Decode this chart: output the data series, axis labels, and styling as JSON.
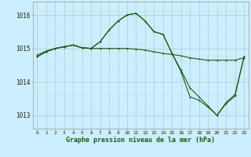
{
  "title": "Graphe pression niveau de la mer (hPa)",
  "ylim": [
    1012.6,
    1016.4
  ],
  "yticks": [
    1013,
    1014,
    1015,
    1016
  ],
  "ytick_labels": [
    "1013",
    "1014",
    "1015",
    "1016"
  ],
  "xticks": [
    0,
    1,
    2,
    3,
    4,
    5,
    6,
    7,
    8,
    9,
    10,
    11,
    12,
    13,
    14,
    15,
    16,
    17,
    18,
    19,
    20,
    21,
    22,
    23
  ],
  "background_color": "#cceeff",
  "grid_color_major": "#aacccc",
  "grid_color_minor": "#bbdddd",
  "line_color": "#1a5c1a",
  "line1_y": [
    1014.8,
    1014.92,
    1015.0,
    1015.05,
    1015.1,
    1015.02,
    1015.0,
    1015.0,
    1015.0,
    1015.0,
    1015.0,
    1014.98,
    1014.95,
    1014.9,
    1014.85,
    1014.82,
    1014.78,
    1014.72,
    1014.68,
    1014.65,
    1014.65,
    1014.65,
    1014.65,
    1014.72
  ],
  "line2_y": [
    1014.75,
    1014.9,
    1015.0,
    1015.05,
    1015.1,
    1015.02,
    1015.0,
    1015.2,
    1015.55,
    1015.82,
    1016.0,
    1016.05,
    1015.82,
    1015.5,
    1015.42,
    1014.85,
    1014.35,
    1013.82,
    1013.55,
    1013.28,
    1013.0,
    1013.38,
    1013.62,
    1014.75
  ],
  "line3_y": [
    1014.75,
    1014.9,
    1015.0,
    1015.05,
    1015.1,
    1015.02,
    1015.0,
    1015.2,
    1015.55,
    1015.82,
    1016.0,
    1016.05,
    1015.82,
    1015.5,
    1015.42,
    1014.85,
    1014.3,
    1013.55,
    1013.45,
    1013.25,
    1013.0,
    1013.35,
    1013.58,
    1014.75
  ],
  "lw": 0.8,
  "ms": 2.0
}
